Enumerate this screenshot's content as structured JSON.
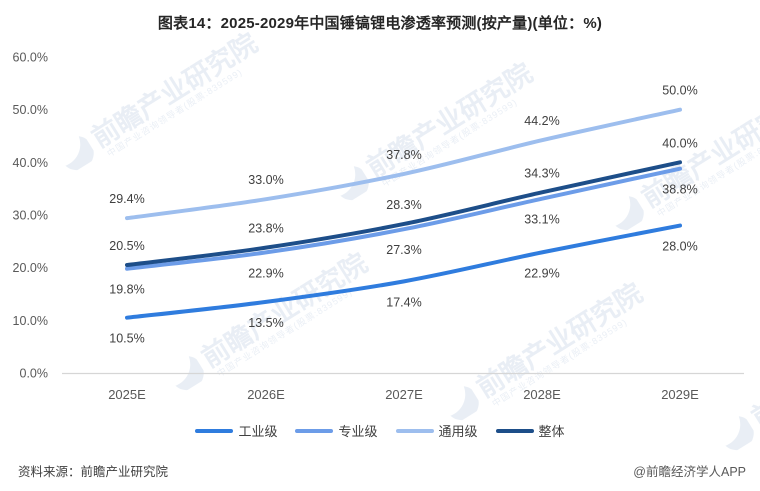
{
  "title": "图表14：2025-2029年中国锤镐锂电渗透率预测(按产量)(单位：%)",
  "chart_data": {
    "type": "line",
    "categories": [
      "2025E",
      "2026E",
      "2027E",
      "2028E",
      "2029E"
    ],
    "series": [
      {
        "id": "industrial",
        "name": "工业级",
        "values": [
          10.5,
          13.5,
          17.4,
          22.9,
          28.0
        ],
        "color": "#2F7CDE",
        "label_position": "below"
      },
      {
        "id": "professional",
        "name": "专业级",
        "values": [
          19.8,
          22.9,
          27.3,
          33.1,
          38.8
        ],
        "color": "#6C9CE8",
        "label_position": "below"
      },
      {
        "id": "general",
        "name": "通用级",
        "values": [
          29.4,
          33.0,
          37.8,
          44.2,
          50.0
        ],
        "color": "#9DBEEE",
        "label_position": "above"
      },
      {
        "id": "overall",
        "name": "整体",
        "values": [
          20.5,
          23.8,
          28.3,
          34.3,
          40.0
        ],
        "color": "#1D4E89",
        "label_position": "above"
      }
    ],
    "ylim": [
      0,
      60
    ],
    "ytick_step": 10,
    "ytick_labels": [
      "0.0%",
      "10.0%",
      "20.0%",
      "30.0%",
      "40.0%",
      "50.0%",
      "60.0%"
    ],
    "grid": false,
    "legend_position": "bottom",
    "axis_color": "#D6D6D6",
    "tick_label_color": "#595959",
    "data_label_color": "#404040"
  },
  "footer": {
    "source": "资料来源：前瞻产业研究院",
    "credit": "@前瞻经济学人APP"
  },
  "watermark": {
    "text": "前瞻产业研究院",
    "subtext": "中国产业咨询领导者(股票:839599)"
  }
}
